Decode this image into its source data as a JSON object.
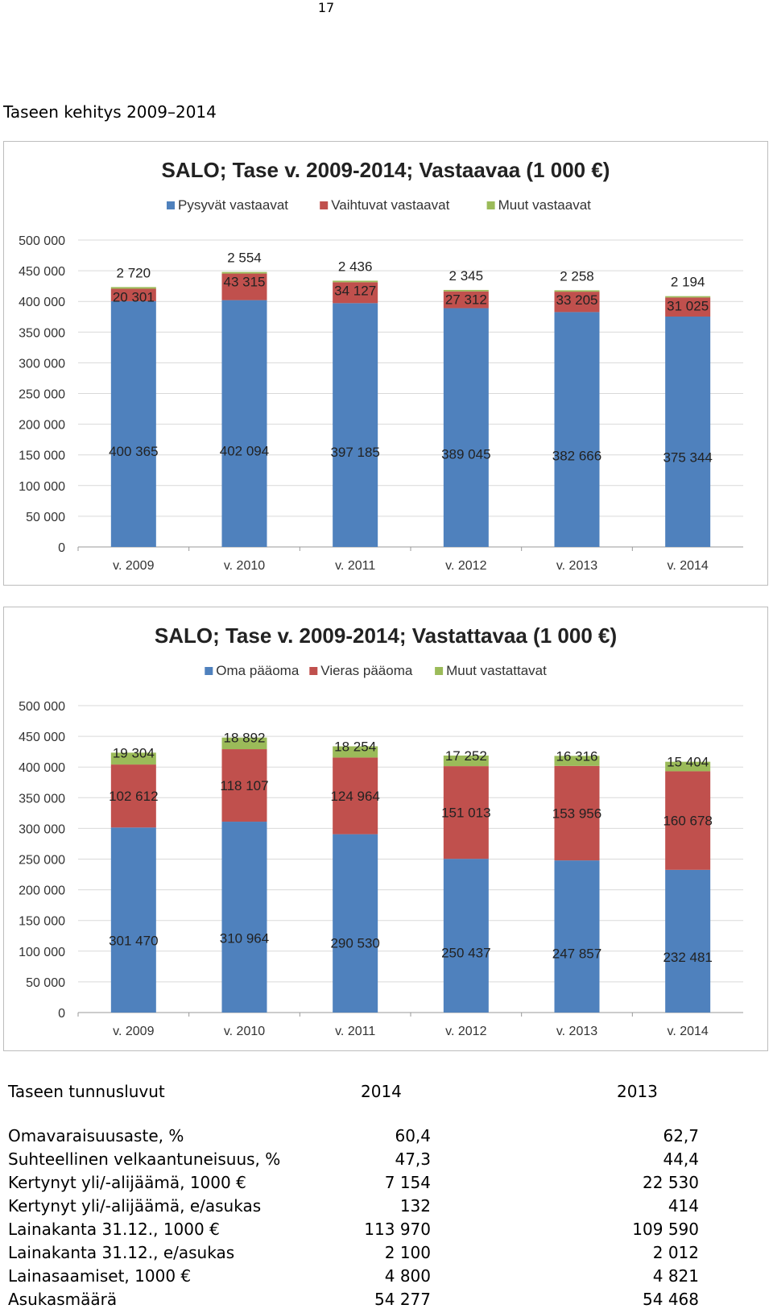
{
  "page_number": "17",
  "section_heading": "Taseen kehitys 2009–2014",
  "colors": {
    "blue": "#4f81bd",
    "red": "#c0504d",
    "green": "#9bbb59",
    "grid": "#d9d9d9"
  },
  "chart_data": [
    {
      "type": "bar",
      "stacked": true,
      "title": "SALO; Tase v. 2009-2014; Vastaavaa (1 000 €)",
      "categories": [
        "v. 2009",
        "v. 2010",
        "v. 2011",
        "v. 2012",
        "v. 2013",
        "v. 2014"
      ],
      "series": [
        {
          "name": "Pysyvät vastaavat",
          "values": [
            400365,
            402094,
            397185,
            389045,
            382666,
            375344
          ],
          "labels": [
            "400 365",
            "402 094",
            "397 185",
            "389 045",
            "382 666",
            "375 344"
          ]
        },
        {
          "name": "Vaihtuvat vastaavat",
          "values": [
            20301,
            43315,
            34127,
            27312,
            33205,
            31025
          ],
          "labels": [
            "20 301",
            "43 315",
            "34 127",
            "27 312",
            "33 205",
            "31 025"
          ]
        },
        {
          "name": "Muut vastaavat",
          "values": [
            2720,
            2554,
            2436,
            2345,
            2258,
            2194
          ],
          "labels": [
            "2 720",
            "2 554",
            "2 436",
            "2 345",
            "2 258",
            "2 194"
          ]
        }
      ],
      "ylim": [
        0,
        500000
      ],
      "yticks": [
        0,
        50000,
        100000,
        150000,
        200000,
        250000,
        300000,
        350000,
        400000,
        450000,
        500000
      ],
      "ytick_labels": [
        "0",
        "50 000",
        "100 000",
        "150 000",
        "200 000",
        "250 000",
        "300 000",
        "350 000",
        "400 000",
        "450 000",
        "500 000"
      ],
      "grid": true,
      "legend": "top"
    },
    {
      "type": "bar",
      "stacked": true,
      "title": "SALO; Tase v. 2009-2014; Vastattavaa (1 000 €)",
      "categories": [
        "v. 2009",
        "v. 2010",
        "v. 2011",
        "v. 2012",
        "v. 2013",
        "v. 2014"
      ],
      "series": [
        {
          "name": "Oma pääoma",
          "values": [
            301470,
            310964,
            290530,
            250437,
            247857,
            232481
          ],
          "labels": [
            "301 470",
            "310 964",
            "290 530",
            "250 437",
            "247 857",
            "232 481"
          ]
        },
        {
          "name": "Vieras pääoma",
          "values": [
            102612,
            118107,
            124964,
            151013,
            153956,
            160678
          ],
          "labels": [
            "102 612",
            "118 107",
            "124 964",
            "151 013",
            "153 956",
            "160 678"
          ]
        },
        {
          "name": "Muut vastattavat",
          "values": [
            19304,
            18892,
            18254,
            17252,
            16316,
            15404
          ],
          "labels": [
            "19 304",
            "18 892",
            "18 254",
            "17 252",
            "16 316",
            "15 404"
          ]
        }
      ],
      "ylim": [
        0,
        500000
      ],
      "yticks": [
        0,
        50000,
        100000,
        150000,
        200000,
        250000,
        300000,
        350000,
        400000,
        450000,
        500000
      ],
      "ytick_labels": [
        "0",
        "50 000",
        "100 000",
        "150 000",
        "200 000",
        "250 000",
        "300 000",
        "350 000",
        "400 000",
        "450 000",
        "500 000"
      ],
      "grid": true,
      "legend": "top"
    }
  ],
  "kpi": {
    "title": "Taseen tunnusluvut",
    "col1": "2014",
    "col2": "2013",
    "rows": [
      {
        "label": "Omavaraisuusaste, %",
        "v1": "60,4",
        "v2": "62,7"
      },
      {
        "label": "Suhteellinen velkaantuneisuus, %",
        "v1": "47,3",
        "v2": "44,4"
      },
      {
        "label": "Kertynyt yli/-alijäämä, 1000 €",
        "v1": "7 154",
        "v2": "22 530"
      },
      {
        "label": "Kertynyt yli/-alijäämä, e/asukas",
        "v1": "132",
        "v2": "414"
      },
      {
        "label": "Lainakanta 31.12., 1000 €",
        "v1": "113 970",
        "v2": "109 590"
      },
      {
        "label": "Lainakanta 31.12., e/asukas",
        "v1": "2 100",
        "v2": "2 012"
      },
      {
        "label": "Lainasaamiset, 1000 €",
        "v1": "4 800",
        "v2": "4 821"
      },
      {
        "label": "Asukasmäärä",
        "v1": "54 277",
        "v2": "54 468"
      }
    ]
  }
}
